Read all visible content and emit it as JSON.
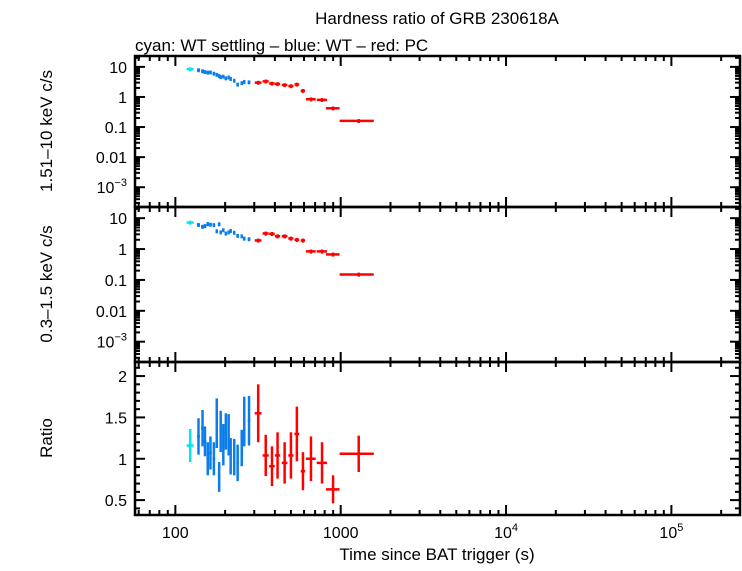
{
  "chart_data": {
    "type": "scatter",
    "title": "Hardness ratio of GRB 230618A",
    "subtitle": "cyan: WT settling – blue: WT – red: PC",
    "xlabel": "Time since BAT trigger (s)",
    "xscale": "log",
    "xlim": [
      57,
      260000
    ],
    "xticks": [
      {
        "v": 100,
        "base": "100",
        "exp": ""
      },
      {
        "v": 1000,
        "base": "1000",
        "exp": ""
      },
      {
        "v": 10000,
        "base": "10",
        "exp": "4"
      },
      {
        "v": 100000,
        "base": "10",
        "exp": "5"
      }
    ],
    "colors": {
      "wt_settling": "#00e5ee",
      "wt": "#0a7de8",
      "pc": "#ff0000"
    },
    "panels": [
      {
        "id": "hard",
        "ylabel": "1.51–10 keV c/s",
        "yscale": "log",
        "ylim": [
          0.00022,
          23
        ],
        "yticks": [
          {
            "v": 10,
            "base": "10",
            "exp": ""
          },
          {
            "v": 1,
            "base": "1",
            "exp": ""
          },
          {
            "v": 0.1,
            "base": "0.1",
            "exp": ""
          },
          {
            "v": 0.01,
            "base": "0.01",
            "exp": ""
          },
          {
            "v": 0.001,
            "base": "10",
            "exp": "−3"
          }
        ]
      },
      {
        "id": "soft",
        "ylabel": "0.3–1.5 keV c/s",
        "yscale": "log",
        "ylim": [
          0.00022,
          23
        ],
        "yticks": [
          {
            "v": 10,
            "base": "10",
            "exp": ""
          },
          {
            "v": 1,
            "base": "1",
            "exp": ""
          },
          {
            "v": 0.1,
            "base": "0.1",
            "exp": ""
          },
          {
            "v": 0.01,
            "base": "0.01",
            "exp": ""
          },
          {
            "v": 0.001,
            "base": "10",
            "exp": "−3"
          }
        ]
      },
      {
        "id": "ratio",
        "ylabel": "Ratio",
        "yscale": "linear",
        "ylim": [
          0.32,
          2.17
        ],
        "yticks": [
          {
            "v": 2,
            "base": "2",
            "exp": ""
          },
          {
            "v": 1.5,
            "base": "1.5",
            "exp": ""
          },
          {
            "v": 1,
            "base": "1",
            "exp": ""
          },
          {
            "v": 0.5,
            "base": "0.5",
            "exp": ""
          }
        ]
      }
    ],
    "rate_err_frac": 0.15,
    "series": [
      {
        "mode": "wt_settling",
        "t": [
          123
        ],
        "xerr": [
          6
        ],
        "hard": [
          8.4
        ],
        "soft": [
          7.2
        ],
        "ratio": [
          1.16
        ],
        "ratio_err": [
          0.2
        ]
      },
      {
        "mode": "wt",
        "t": [
          138,
          146,
          151,
          157,
          163,
          171,
          178,
          184,
          188,
          195,
          202,
          210,
          216,
          227,
          238,
          252,
          261,
          279
        ],
        "xerr": [
          3,
          3,
          3,
          3,
          3,
          3,
          3,
          3,
          3,
          3,
          3,
          3,
          3,
          4,
          4,
          4,
          4,
          5
        ],
        "hard": [
          7.8,
          7.2,
          6.8,
          6.5,
          6.6,
          6.0,
          5.5,
          5.0,
          4.6,
          4.8,
          4.2,
          4.5,
          4.0,
          3.5,
          2.6,
          2.9,
          3.2,
          3.1
        ],
        "soft": [
          6.1,
          5.3,
          5.6,
          6.5,
          6.2,
          6.0,
          3.8,
          6.4,
          3.5,
          4.1,
          3.2,
          3.5,
          3.9,
          3.4,
          2.7,
          2.6,
          2.2,
          2.1
        ],
        "ratio": [
          1.27,
          1.37,
          1.21,
          1.0,
          1.07,
          1.0,
          1.43,
          0.78,
          1.33,
          1.17,
          1.33,
          1.29,
          1.03,
          1.02,
          0.95,
          1.13,
          1.45,
          1.46
        ],
        "ratio_err": [
          0.22,
          0.22,
          0.18,
          0.2,
          0.2,
          0.2,
          0.3,
          0.18,
          0.25,
          0.25,
          0.22,
          0.25,
          0.22,
          0.22,
          0.22,
          0.22,
          0.3,
          0.3
        ]
      },
      {
        "mode": "pc",
        "t": [
          317,
          352,
          384,
          415,
          458,
          500,
          543,
          591,
          661,
          771,
          899,
          1285
        ],
        "xerr": [
          15,
          15,
          15,
          15,
          18,
          18,
          18,
          18,
          45,
          55,
          85,
          300
        ],
        "hard": [
          3.0,
          3.3,
          2.8,
          2.7,
          2.5,
          2.3,
          2.6,
          1.6,
          0.84,
          0.8,
          0.42,
          0.16
        ],
        "soft": [
          1.9,
          3.2,
          3.1,
          2.6,
          2.6,
          2.2,
          2.0,
          1.9,
          0.84,
          0.84,
          0.67,
          0.15
        ],
        "ratio": [
          1.55,
          1.04,
          0.91,
          1.04,
          0.95,
          1.04,
          1.3,
          0.85,
          1.0,
          0.95,
          0.63,
          1.06
        ],
        "ratio_err": [
          0.35,
          0.25,
          0.24,
          0.28,
          0.25,
          0.28,
          0.33,
          0.23,
          0.27,
          0.25,
          0.17,
          0.22
        ]
      }
    ]
  }
}
